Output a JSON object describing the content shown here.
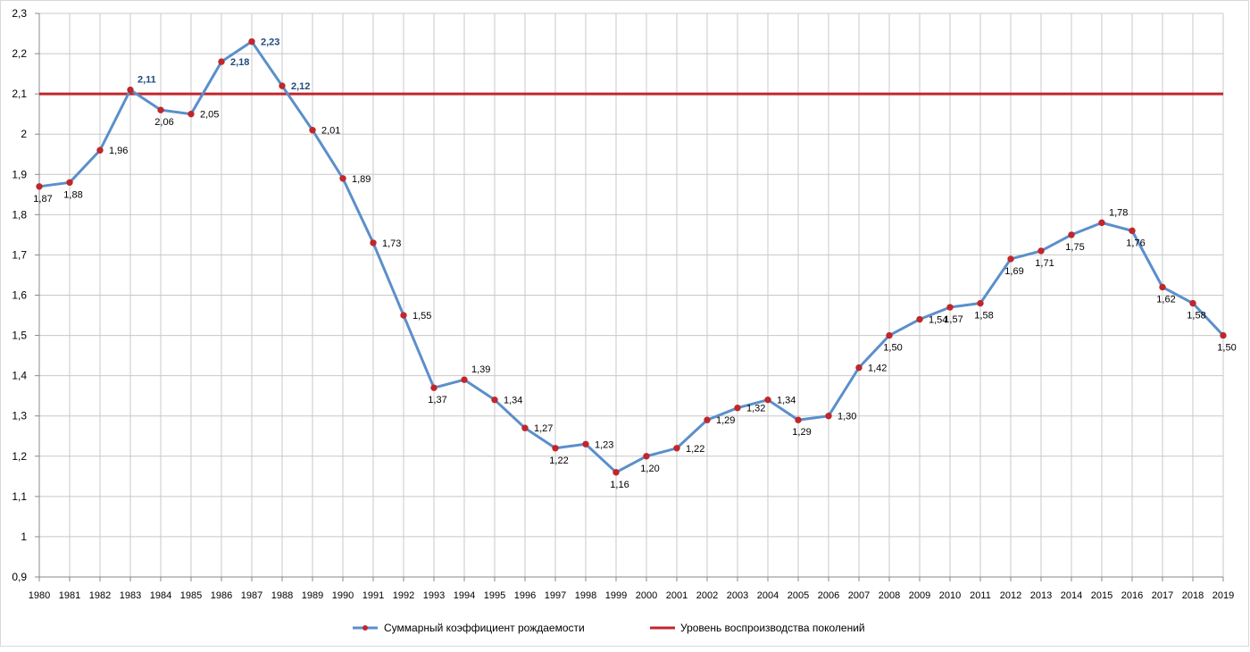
{
  "chart_data": {
    "type": "line",
    "x": [
      1980,
      1981,
      1982,
      1983,
      1984,
      1985,
      1986,
      1987,
      1988,
      1989,
      1990,
      1991,
      1992,
      1993,
      1994,
      1995,
      1996,
      1997,
      1998,
      1999,
      2000,
      2001,
      2002,
      2003,
      2004,
      2005,
      2006,
      2007,
      2008,
      2009,
      2010,
      2011,
      2012,
      2013,
      2014,
      2015,
      2016,
      2017,
      2018,
      2019
    ],
    "ylim": [
      0.9,
      2.3
    ],
    "yticks": [
      0.9,
      1,
      1.1,
      1.2,
      1.3,
      1.4,
      1.5,
      1.6,
      1.7,
      1.8,
      1.9,
      2,
      2.1,
      2.2,
      2.3
    ],
    "ytick_labels": [
      "0,9",
      "1",
      "1,1",
      "1,2",
      "1,3",
      "1,4",
      "1,5",
      "1,6",
      "1,7",
      "1,8",
      "1,9",
      "2",
      "2,1",
      "2,2",
      "2,3"
    ],
    "grid": true,
    "legend_position": "bottom",
    "series": [
      {
        "name": "Суммарный коэффициент рождаемости",
        "color": "#5b8fcb",
        "marker_color": "#c0272d",
        "values": [
          1.87,
          1.88,
          1.96,
          2.11,
          2.06,
          2.05,
          2.18,
          2.23,
          2.12,
          2.01,
          1.89,
          1.73,
          1.55,
          1.37,
          1.39,
          1.34,
          1.27,
          1.22,
          1.23,
          1.16,
          1.2,
          1.22,
          1.29,
          1.32,
          1.34,
          1.29,
          1.3,
          1.42,
          1.5,
          1.54,
          1.57,
          1.58,
          1.69,
          1.71,
          1.75,
          1.78,
          1.76,
          1.62,
          1.58,
          1.5
        ],
        "labels": [
          "1,87",
          "1,88",
          "1,96",
          "2,11",
          "2,06",
          "2,05",
          "2,18",
          "2,23",
          "2,12",
          "2,01",
          "1,89",
          "1,73",
          "1,55",
          "1,37",
          "1,39",
          "1,34",
          "1,27",
          "1,22",
          "1,23",
          "1,16",
          "1,20",
          "1,22",
          "1,29",
          "1,32",
          "1,34",
          "1,29",
          "1,30",
          "1,42",
          "1,50",
          "1,54",
          "1,57",
          "1,58",
          "1,69",
          "1,71",
          "1,75",
          "1,78",
          "1,76",
          "1,62",
          "1,58",
          "1,50"
        ],
        "label_placement": [
          "below",
          "below",
          "right",
          "above",
          "below",
          "right",
          "right",
          "right",
          "right",
          "right",
          "right",
          "right",
          "right",
          "below",
          "above",
          "right",
          "right",
          "below",
          "right",
          "below",
          "below",
          "right",
          "right",
          "right",
          "right",
          "below",
          "right",
          "right",
          "below",
          "right",
          "below",
          "below",
          "below",
          "below",
          "below",
          "above",
          "below",
          "below",
          "below",
          "below"
        ],
        "highlighted_labels": [
          3,
          6,
          7,
          8
        ]
      },
      {
        "name": "Уровень воспроизводства поколений",
        "color": "#c0272d",
        "constant": 2.1
      }
    ],
    "highlight_label_color": "#1f497d"
  }
}
